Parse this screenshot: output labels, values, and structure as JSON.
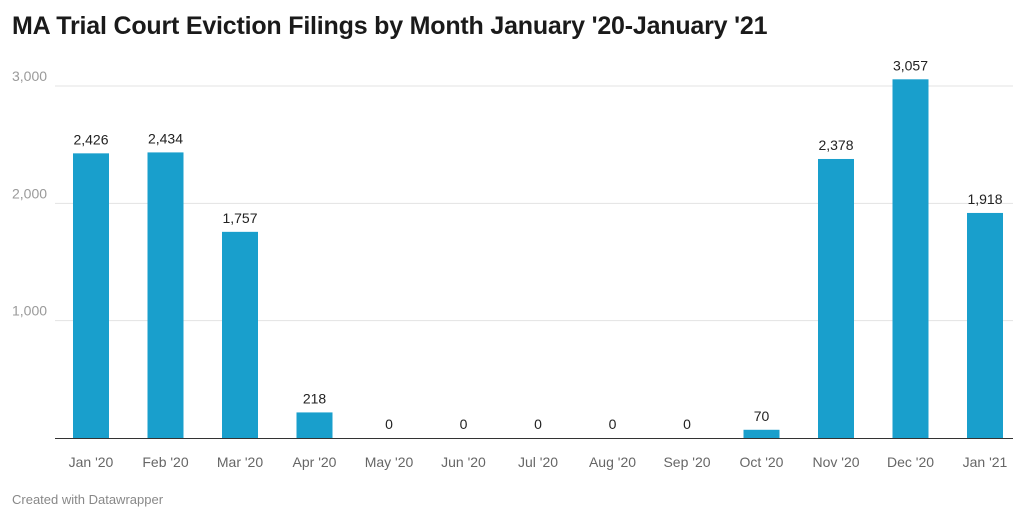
{
  "chart_data": {
    "type": "bar",
    "title": "MA Trial Court Eviction Filings by Month January '20-January '21",
    "xlabel": "",
    "ylabel": "",
    "categories": [
      "Jan '20",
      "Feb '20",
      "Mar '20",
      "Apr '20",
      "May '20",
      "Jun '20",
      "Jul '20",
      "Aug '20",
      "Sep '20",
      "Oct '20",
      "Nov '20",
      "Dec '20",
      "Jan '21"
    ],
    "values": [
      2426,
      2434,
      1757,
      218,
      0,
      0,
      0,
      0,
      0,
      70,
      2378,
      3057,
      1918
    ],
    "value_labels": [
      "2,426",
      "2,434",
      "1,757",
      "218",
      "0",
      "0",
      "0",
      "0",
      "0",
      "70",
      "2,378",
      "3,057",
      "1,918"
    ],
    "ylim": [
      0,
      3000
    ],
    "yticks": [
      1000,
      2000,
      3000
    ],
    "ytick_labels": [
      "1,000",
      "2,000",
      "3,000"
    ],
    "grid": true,
    "bar_color": "#199fcc"
  },
  "footer": "Created with Datawrapper"
}
